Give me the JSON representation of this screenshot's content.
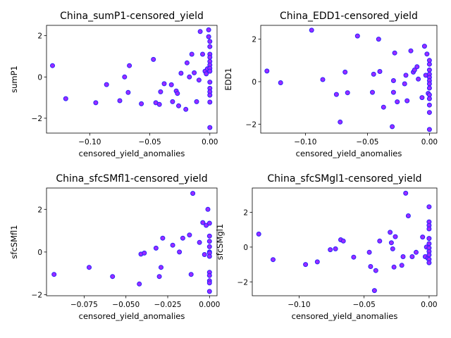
{
  "chart_data": [
    {
      "type": "scatter",
      "title": "China_sumP1-censored_yield",
      "xlabel": "censored_yield_anomalies",
      "ylabel": "sumP1",
      "xlim": [
        -0.136,
        0.006
      ],
      "ylim": [
        -2.72,
        2.5
      ],
      "xticks": [
        -0.1,
        -0.05,
        0.0
      ],
      "xtick_labels": [
        "−0.10",
        "−0.05",
        "0.00"
      ],
      "yticks": [
        -2,
        0,
        2
      ],
      "ytick_labels": [
        "−2",
        "0",
        "2"
      ],
      "marker_face": "#9c2bff",
      "marker_edge": "#2424ff",
      "points": [
        [
          -0.131,
          0.55
        ],
        [
          -0.12,
          -1.05
        ],
        [
          -0.095,
          -1.25
        ],
        [
          -0.086,
          -0.37
        ],
        [
          -0.075,
          -1.15
        ],
        [
          -0.071,
          0.0
        ],
        [
          -0.068,
          -0.75
        ],
        [
          -0.067,
          0.55
        ],
        [
          -0.057,
          -1.3
        ],
        [
          -0.047,
          0.85
        ],
        [
          -0.045,
          -1.25
        ],
        [
          -0.042,
          -1.33
        ],
        [
          -0.041,
          -0.72
        ],
        [
          -0.038,
          -0.33
        ],
        [
          -0.032,
          -0.38
        ],
        [
          -0.031,
          -1.2
        ],
        [
          -0.028,
          -0.68
        ],
        [
          -0.027,
          -0.8
        ],
        [
          -0.026,
          -1.4
        ],
        [
          -0.024,
          0.18
        ],
        [
          -0.02,
          -1.57
        ],
        [
          -0.019,
          0.68
        ],
        [
          -0.017,
          0.0
        ],
        [
          -0.015,
          1.1
        ],
        [
          -0.013,
          0.2
        ],
        [
          -0.011,
          -1.2
        ],
        [
          -0.009,
          -0.15
        ],
        [
          -0.008,
          2.2
        ],
        [
          -0.006,
          1.1
        ],
        [
          -0.004,
          0.28
        ],
        [
          -0.003,
          0.15
        ],
        [
          -0.002,
          0.4
        ],
        [
          -0.001,
          2.28
        ],
        [
          -0.001,
          1.95
        ],
        [
          0.0,
          1.72
        ],
        [
          0.0,
          1.47
        ],
        [
          0.0,
          1.1
        ],
        [
          0.0,
          0.95
        ],
        [
          0.0,
          0.75
        ],
        [
          0.0,
          0.58
        ],
        [
          0.0,
          0.42
        ],
        [
          0.0,
          0.28
        ],
        [
          0.0,
          -0.25
        ],
        [
          0.0,
          -0.55
        ],
        [
          0.0,
          -0.72
        ],
        [
          0.0,
          -0.88
        ],
        [
          0.0,
          -1.22
        ],
        [
          0.0,
          -2.45
        ]
      ]
    },
    {
      "type": "scatter",
      "title": "China_EDD1-censored_yield",
      "xlabel": "censored_yield_anomalies",
      "ylabel": "EDD1",
      "xlim": [
        -0.136,
        0.006
      ],
      "ylim": [
        -2.42,
        2.65
      ],
      "xticks": [
        -0.1,
        -0.05,
        0.0
      ],
      "xtick_labels": [
        "−0.10",
        "−0.05",
        "0.00"
      ],
      "yticks": [
        -2,
        0,
        2
      ],
      "ytick_labels": [
        "−2",
        "0",
        "2"
      ],
      "marker_face": "#9c2bff",
      "marker_edge": "#2424ff",
      "points": [
        [
          -0.131,
          0.5
        ],
        [
          -0.12,
          -0.05
        ],
        [
          -0.095,
          2.42
        ],
        [
          -0.086,
          0.1
        ],
        [
          -0.075,
          -0.6
        ],
        [
          -0.072,
          -1.9
        ],
        [
          -0.068,
          0.45
        ],
        [
          -0.066,
          -0.52
        ],
        [
          -0.058,
          2.15
        ],
        [
          -0.046,
          -0.5
        ],
        [
          -0.045,
          0.35
        ],
        [
          -0.041,
          2.0
        ],
        [
          -0.04,
          0.48
        ],
        [
          -0.037,
          -1.2
        ],
        [
          -0.03,
          -2.12
        ],
        [
          -0.029,
          0.05
        ],
        [
          -0.029,
          -0.5
        ],
        [
          -0.028,
          1.35
        ],
        [
          -0.026,
          -0.95
        ],
        [
          -0.02,
          -0.1
        ],
        [
          -0.019,
          0.3
        ],
        [
          -0.018,
          -0.9
        ],
        [
          -0.015,
          1.45
        ],
        [
          -0.013,
          0.45
        ],
        [
          -0.012,
          0.55
        ],
        [
          -0.01,
          0.7
        ],
        [
          -0.009,
          0.12
        ],
        [
          -0.006,
          -0.75
        ],
        [
          -0.004,
          1.67
        ],
        [
          -0.003,
          0.3
        ],
        [
          -0.002,
          1.3
        ],
        [
          -0.001,
          -0.55
        ],
        [
          0.0,
          1.0
        ],
        [
          0.0,
          0.82
        ],
        [
          0.0,
          0.55
        ],
        [
          0.0,
          0.35
        ],
        [
          0.0,
          0.2
        ],
        [
          0.0,
          0.05
        ],
        [
          0.0,
          -0.1
        ],
        [
          0.0,
          -0.3
        ],
        [
          0.0,
          -0.62
        ],
        [
          0.0,
          -0.8
        ],
        [
          0.0,
          -1.1
        ],
        [
          0.0,
          -1.45
        ],
        [
          0.0,
          -2.25
        ]
      ]
    },
    {
      "type": "scatter",
      "title": "China_sfcSMfl1-censored_yield",
      "xlabel": "censored_yield_anomalies",
      "ylabel": "sfcSMfl1",
      "xlim": [
        -0.0975,
        0.0045
      ],
      "ylim": [
        -2.05,
        3.0
      ],
      "xticks": [
        -0.075,
        -0.05,
        -0.025,
        0.0
      ],
      "xtick_labels": [
        "−0.075",
        "−0.050",
        "−0.025",
        "0.000"
      ],
      "yticks": [
        -2,
        0,
        2
      ],
      "ytick_labels": [
        "−2",
        "0",
        "2"
      ],
      "marker_face": "#9c2bff",
      "marker_edge": "#2424ff",
      "points": [
        [
          -0.093,
          -1.05
        ],
        [
          -0.072,
          -0.72
        ],
        [
          -0.058,
          -1.15
        ],
        [
          -0.042,
          -1.5
        ],
        [
          -0.041,
          -0.1
        ],
        [
          -0.039,
          -0.05
        ],
        [
          -0.032,
          0.18
        ],
        [
          -0.03,
          -1.15
        ],
        [
          -0.029,
          -0.72
        ],
        [
          -0.028,
          0.65
        ],
        [
          -0.022,
          0.32
        ],
        [
          -0.018,
          0.0
        ],
        [
          -0.016,
          0.65
        ],
        [
          -0.012,
          0.8
        ],
        [
          -0.011,
          -1.05
        ],
        [
          -0.01,
          2.75
        ],
        [
          -0.006,
          0.45
        ],
        [
          -0.004,
          1.38
        ],
        [
          -0.003,
          -0.12
        ],
        [
          -0.002,
          1.25
        ],
        [
          -0.001,
          2.0
        ],
        [
          0.0,
          1.35
        ],
        [
          0.0,
          0.75
        ],
        [
          0.0,
          0.5
        ],
        [
          0.0,
          0.25
        ],
        [
          0.0,
          0.0
        ],
        [
          0.0,
          -0.05
        ],
        [
          0.0,
          -0.2
        ],
        [
          0.0,
          -0.95
        ],
        [
          0.0,
          -1.1
        ],
        [
          0.0,
          -1.35
        ],
        [
          0.0,
          -1.45
        ],
        [
          0.0,
          -1.85
        ]
      ]
    },
    {
      "type": "scatter",
      "title": "China_sfcSMgl1-censored_yield",
      "xlabel": "censored_yield_anomalies",
      "ylabel": "sfcSMgl1",
      "xlim": [
        -0.136,
        0.006
      ],
      "ylim": [
        -2.8,
        3.4
      ],
      "xticks": [
        -0.1,
        -0.05,
        0.0
      ],
      "xtick_labels": [
        "−0.10",
        "−0.05",
        "0.00"
      ],
      "yticks": [
        -2,
        0,
        2
      ],
      "ytick_labels": [
        "−2",
        "0",
        "2"
      ],
      "marker_face": "#9c2bff",
      "marker_edge": "#2424ff",
      "points": [
        [
          -0.131,
          0.75
        ],
        [
          -0.12,
          -0.72
        ],
        [
          -0.095,
          -1.0
        ],
        [
          -0.086,
          -0.85
        ],
        [
          -0.076,
          -0.15
        ],
        [
          -0.072,
          -0.1
        ],
        [
          -0.068,
          0.42
        ],
        [
          -0.066,
          0.35
        ],
        [
          -0.058,
          -0.58
        ],
        [
          -0.046,
          -0.3
        ],
        [
          -0.045,
          -1.12
        ],
        [
          -0.042,
          -2.5
        ],
        [
          -0.041,
          -1.35
        ],
        [
          -0.038,
          0.35
        ],
        [
          -0.03,
          0.85
        ],
        [
          -0.029,
          0.25
        ],
        [
          -0.028,
          -0.1
        ],
        [
          -0.027,
          -1.15
        ],
        [
          -0.026,
          0.6
        ],
        [
          -0.021,
          -1.05
        ],
        [
          -0.02,
          -0.55
        ],
        [
          -0.018,
          3.1
        ],
        [
          -0.016,
          1.8
        ],
        [
          -0.013,
          -0.55
        ],
        [
          -0.01,
          -0.3
        ],
        [
          -0.005,
          0.58
        ],
        [
          -0.003,
          -0.55
        ],
        [
          -0.002,
          0.0
        ],
        [
          -0.001,
          -0.65
        ],
        [
          0.0,
          2.32
        ],
        [
          0.0,
          1.45
        ],
        [
          0.0,
          1.25
        ],
        [
          0.0,
          1.05
        ],
        [
          0.0,
          0.5
        ],
        [
          0.0,
          0.2
        ],
        [
          0.0,
          -0.05
        ],
        [
          0.0,
          -0.25
        ],
        [
          0.0,
          -0.45
        ],
        [
          0.0,
          -0.7
        ],
        [
          0.0,
          -0.9
        ]
      ]
    }
  ]
}
